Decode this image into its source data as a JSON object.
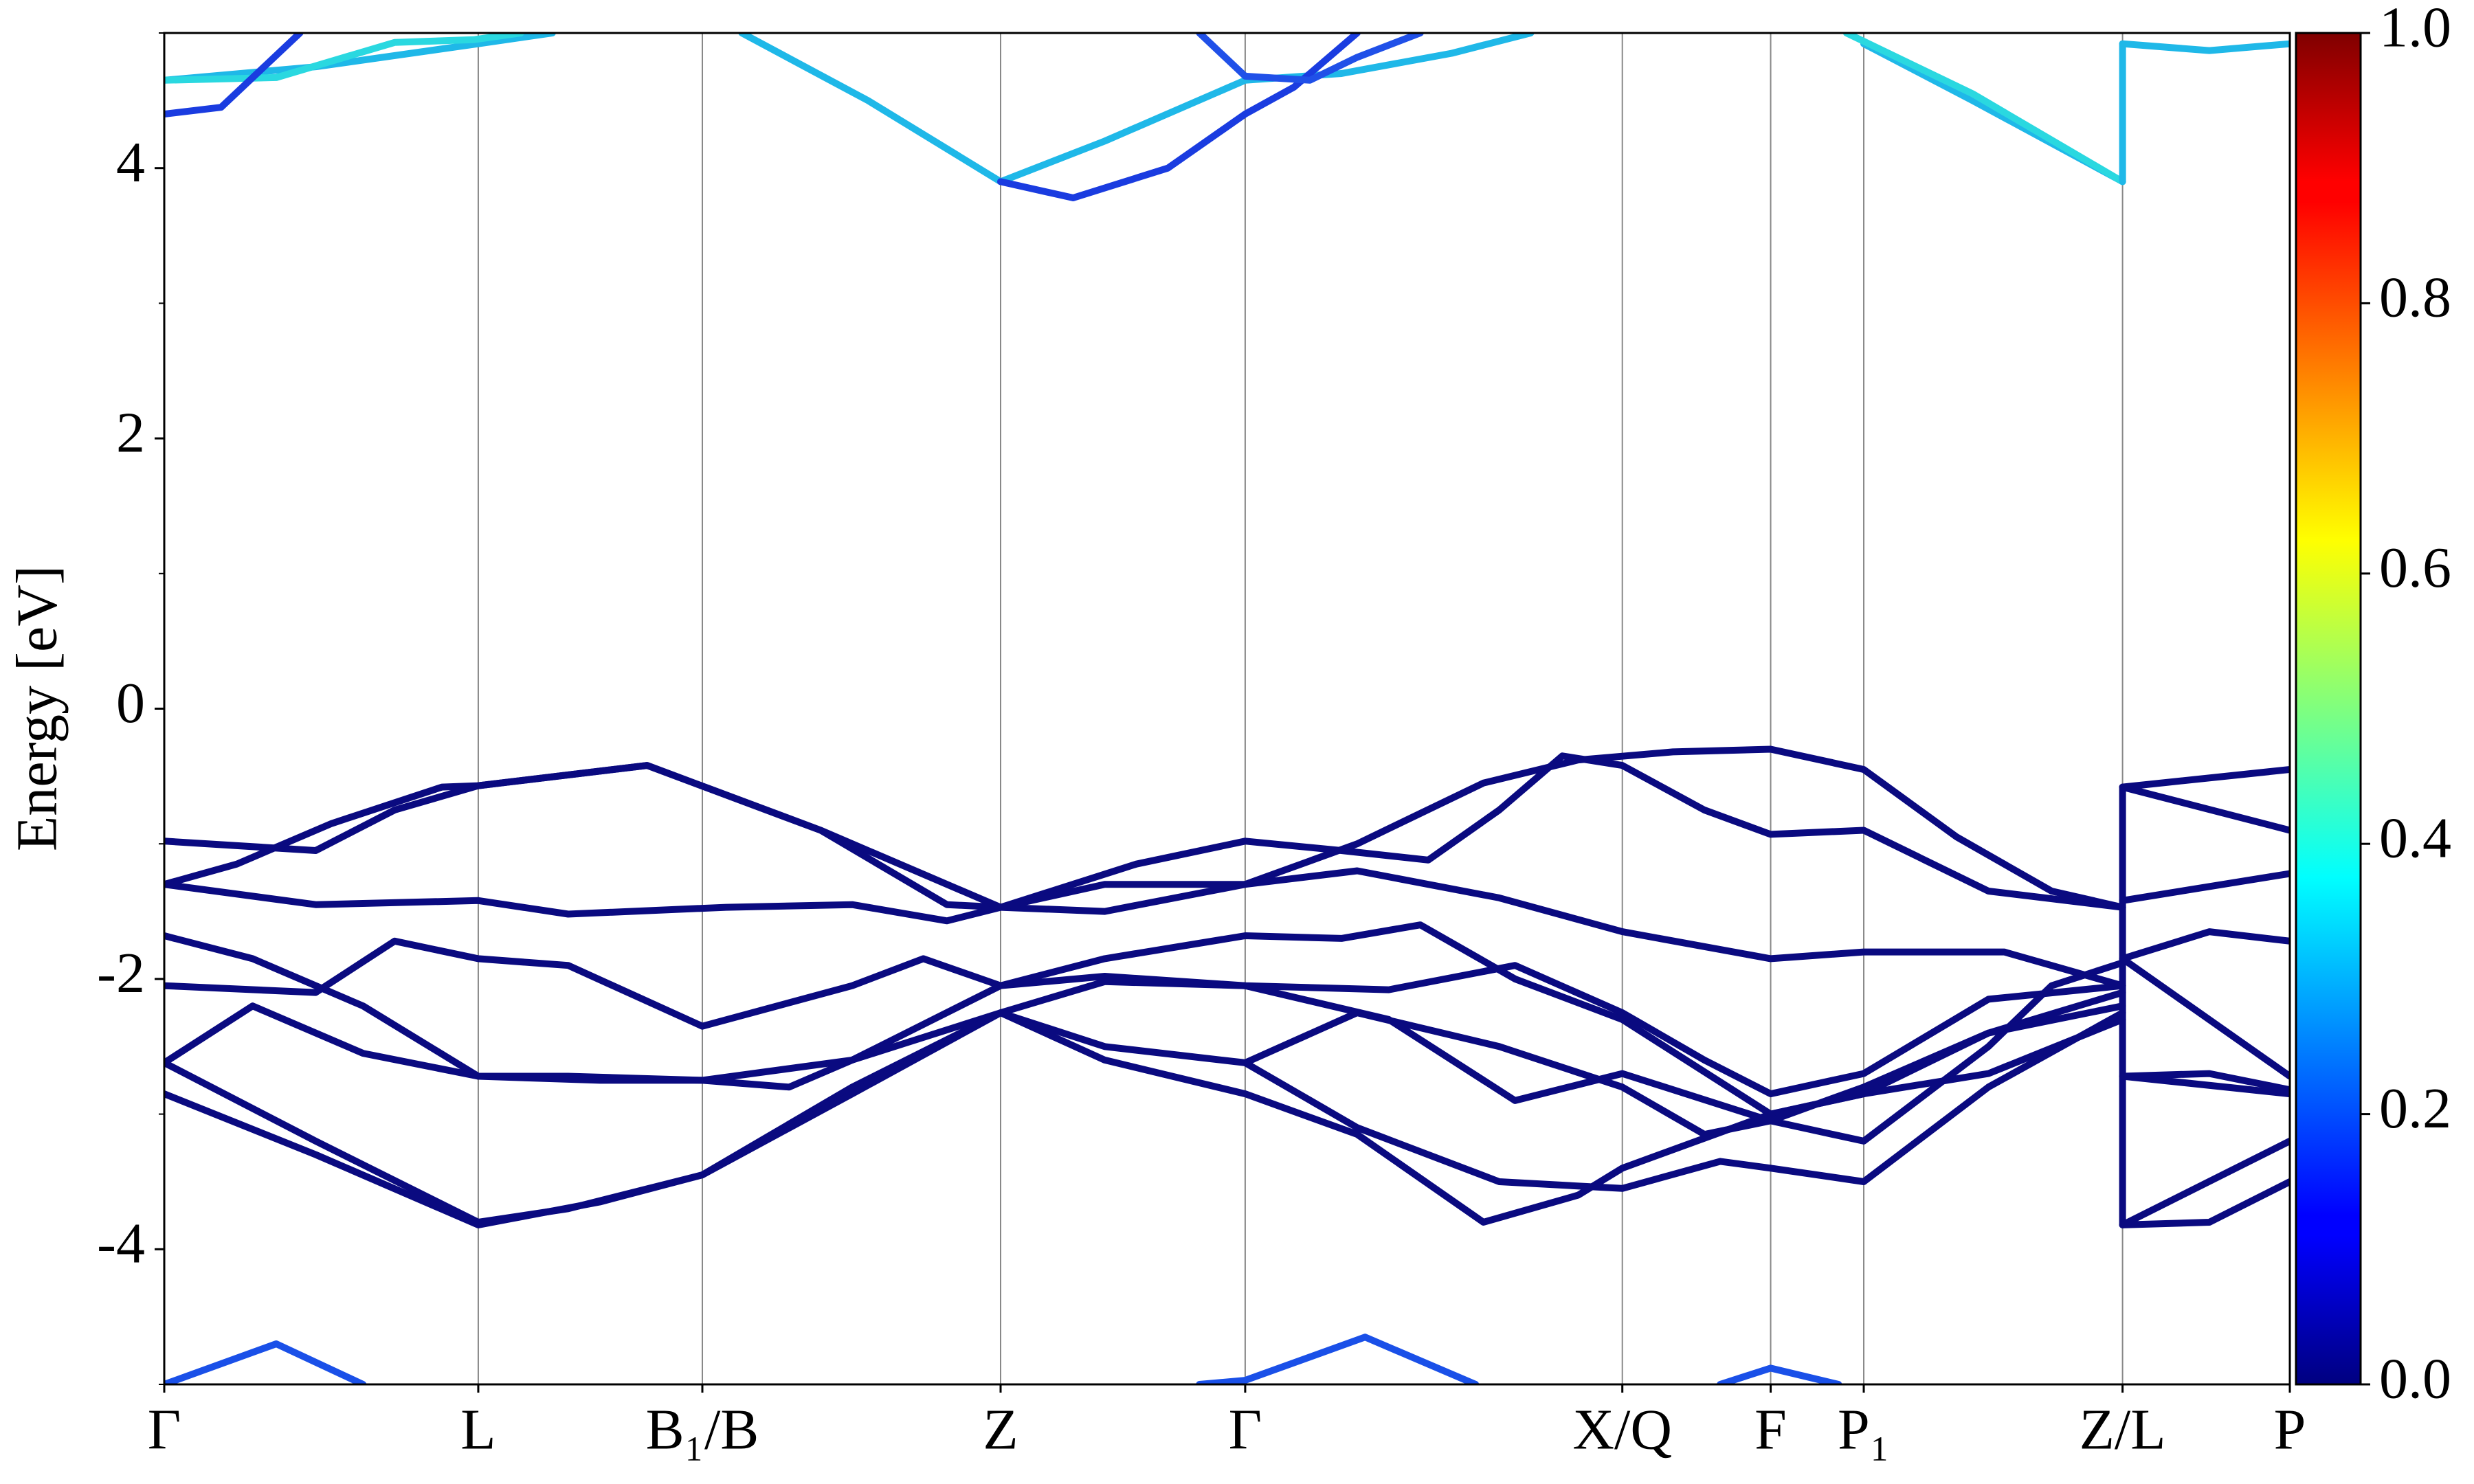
{
  "chart_data": {
    "type": "line",
    "ylabel": "Energy [eV]",
    "xlim": [
      0,
      1347
    ],
    "xticks": [
      {
        "value": 0,
        "label": "Γ"
      },
      {
        "value": 199,
        "label": "L"
      },
      {
        "value": 341,
        "label": "B₁/B"
      },
      {
        "value": 530,
        "label": "Z"
      },
      {
        "value": 685,
        "label": "Γ"
      },
      {
        "value": 924,
        "label": "X/Q"
      },
      {
        "value": 1018,
        "label": "F"
      },
      {
        "value": 1077,
        "label": "P₁"
      },
      {
        "value": 1241,
        "label": "Z/L"
      },
      {
        "value": 1347,
        "label": "P"
      }
    ],
    "ylim": [
      -5,
      5
    ],
    "yticks": [
      -4,
      -2,
      0,
      2,
      4
    ],
    "yminorticks": [
      -5,
      -3,
      -1,
      1,
      3,
      5
    ],
    "grid": "x",
    "colorbar": {
      "colormap": "jet",
      "lim": [
        0,
        1
      ],
      "ticks": [
        {
          "value": 0,
          "label": "0.0"
        },
        {
          "value": 0.2,
          "label": "0.2"
        },
        {
          "value": 0.4,
          "label": "0.4"
        },
        {
          "value": 0.6,
          "label": "0.6"
        },
        {
          "value": 0.8,
          "label": "0.8"
        },
        {
          "value": 1,
          "label": "1.0"
        }
      ]
    },
    "series": [
      {
        "color": "#0a0a80",
        "x": [
          0,
          96,
          146,
          199,
          306,
          416,
          496,
          530,
          616,
          685,
          746,
          801,
          846,
          886,
          924,
          976,
          1018,
          1077,
          1156,
          1241
        ],
        "values": [
          -0.98,
          -1.05,
          -0.75,
          -0.57,
          -0.42,
          -0.9,
          -1.45,
          -1.47,
          -1.15,
          -0.98,
          -1.05,
          -1.12,
          -0.75,
          -0.35,
          -0.42,
          -0.75,
          -0.93,
          -0.9,
          -1.35,
          -1.47
        ]
      },
      {
        "color": "#0a0a80",
        "x": [
          0,
          46,
          106,
          176,
          199,
          306,
          416,
          530,
          596,
          685,
          756,
          836,
          896,
          956,
          1018,
          1077,
          1136,
          1196,
          1241
        ],
        "values": [
          -1.3,
          -1.15,
          -0.85,
          -0.58,
          -0.57,
          -0.42,
          -0.9,
          -1.47,
          -1.5,
          -1.3,
          -1.0,
          -0.55,
          -0.38,
          -0.32,
          -0.3,
          -0.45,
          -0.95,
          -1.35,
          -1.47
        ]
      },
      {
        "color": "#0a0a80",
        "x": [
          0,
          96,
          199,
          256,
          356,
          436,
          496,
          530,
          596,
          685,
          756,
          846,
          924,
          1018,
          1077,
          1166,
          1241
        ],
        "values": [
          -1.3,
          -1.45,
          -1.42,
          -1.52,
          -1.47,
          -1.45,
          -1.57,
          -1.47,
          -1.3,
          -1.3,
          -1.2,
          -1.4,
          -1.65,
          -1.85,
          -1.8,
          -1.8,
          -2.05
        ]
      },
      {
        "color": "#0a0a80",
        "x": [
          0,
          56,
          126,
          199,
          276,
          341,
          396,
          436,
          530,
          596,
          685,
          746,
          796,
          856,
          924,
          1018,
          1077,
          1156,
          1241
        ],
        "values": [
          -1.68,
          -1.85,
          -2.2,
          -2.72,
          -2.75,
          -2.75,
          -2.8,
          -2.6,
          -2.05,
          -1.85,
          -1.68,
          -1.7,
          -1.6,
          -2.0,
          -2.3,
          -3.0,
          -2.85,
          -2.4,
          -2.2
        ]
      },
      {
        "color": "#0a0a80",
        "x": [
          0,
          96,
          146,
          199,
          256,
          341,
          436,
          481,
          530,
          596,
          685,
          776,
          856,
          924,
          976,
          1018,
          1077,
          1156,
          1241
        ],
        "values": [
          -2.05,
          -2.1,
          -1.72,
          -1.85,
          -1.9,
          -2.35,
          -2.05,
          -1.85,
          -2.05,
          -1.98,
          -2.05,
          -2.08,
          -1.9,
          -2.25,
          -2.6,
          -2.85,
          -2.7,
          -2.15,
          -2.05
        ]
      },
      {
        "color": "#0a0a80",
        "x": [
          0,
          56,
          126,
          199,
          256,
          341,
          436,
          530,
          596,
          685,
          776,
          856,
          924,
          1018,
          1077,
          1156,
          1196,
          1241
        ],
        "values": [
          -2.62,
          -2.2,
          -2.55,
          -2.72,
          -2.72,
          -2.75,
          -2.6,
          -2.25,
          -2.02,
          -2.05,
          -2.3,
          -2.9,
          -2.7,
          -3.05,
          -3.2,
          -2.5,
          -2.05,
          -1.88
        ]
      },
      {
        "color": "#0a0a80",
        "x": [
          0,
          96,
          199,
          256,
          341,
          436,
          530,
          596,
          685,
          756,
          836,
          896,
          924,
          1018,
          1077,
          1156,
          1241
        ],
        "values": [
          -2.62,
          -3.2,
          -3.8,
          -3.7,
          -3.45,
          -2.8,
          -2.25,
          -2.6,
          -2.85,
          -3.15,
          -3.8,
          -3.6,
          -3.4,
          -3.0,
          -2.85,
          -2.7,
          -2.3
        ]
      },
      {
        "color": "#0a0a80",
        "x": [
          0,
          96,
          199,
          276,
          341,
          436,
          530,
          596,
          685,
          756,
          846,
          924,
          976,
          1018,
          1077,
          1156,
          1241
        ],
        "values": [
          -2.85,
          -3.3,
          -3.82,
          -3.65,
          -3.45,
          -2.85,
          -2.25,
          -2.5,
          -2.62,
          -2.25,
          -2.5,
          -2.8,
          -3.15,
          -3.05,
          -2.8,
          -2.4,
          -2.1
        ]
      },
      {
        "color": "#0a0a80",
        "x": [
          685,
          756,
          846,
          924,
          986,
          1018,
          1077,
          1156,
          1241
        ],
        "values": [
          -2.62,
          -3.1,
          -3.5,
          -3.55,
          -3.35,
          -3.4,
          -3.5,
          -2.8,
          -2.25
        ]
      },
      {
        "color": "#0a0a80",
        "x": [
          1241,
          1241
        ],
        "values": [
          -0.58,
          -3.82
        ]
      },
      {
        "color": "#0a0a80",
        "x": [
          1241,
          1347
        ],
        "values": [
          -0.58,
          -0.45
        ]
      },
      {
        "color": "#0a0a80",
        "x": [
          1241,
          1347
        ],
        "values": [
          -0.58,
          -0.9
        ]
      },
      {
        "color": "#0a0a80",
        "x": [
          1241,
          1347
        ],
        "values": [
          -1.42,
          -1.22
        ]
      },
      {
        "color": "#0a0a80",
        "x": [
          1241,
          1296,
          1347
        ],
        "values": [
          -1.85,
          -1.65,
          -1.72
        ]
      },
      {
        "color": "#0a0a80",
        "x": [
          1241,
          1347
        ],
        "values": [
          -1.85,
          -2.72
        ]
      },
      {
        "color": "#0a0a80",
        "x": [
          1241,
          1347
        ],
        "values": [
          -2.72,
          -2.85
        ]
      },
      {
        "color": "#0a0a80",
        "x": [
          1241,
          1296,
          1347
        ],
        "values": [
          -2.72,
          -2.7,
          -2.82
        ]
      },
      {
        "color": "#0a0a80",
        "x": [
          1241,
          1347
        ],
        "values": [
          -3.82,
          -3.2
        ]
      },
      {
        "color": "#0a0a80",
        "x": [
          1241,
          1296,
          1347
        ],
        "values": [
          -3.82,
          -3.8,
          -3.5
        ]
      },
      {
        "color": "#1fb8e8",
        "x": [
          0,
          96,
          199,
          246
        ],
        "values": [
          4.65,
          4.75,
          4.92,
          5.0
        ]
      },
      {
        "color": "#2ad8e0",
        "x": [
          0,
          71,
          146,
          196,
          226
        ],
        "values": [
          4.65,
          4.67,
          4.93,
          4.95,
          5.0
        ]
      },
      {
        "color": "#1a3ce0",
        "x": [
          0,
          36,
          86
        ],
        "values": [
          4.4,
          4.45,
          5.0
        ]
      },
      {
        "color": "#1fb8e8",
        "x": [
          366,
          446,
          530,
          596,
          685,
          746,
          816,
          866
        ],
        "values": [
          5.0,
          4.5,
          3.9,
          4.2,
          4.65,
          4.7,
          4.85,
          5.0
        ]
      },
      {
        "color": "#1a3ce0",
        "x": [
          530,
          576,
          636,
          685,
          716,
          756
        ],
        "values": [
          3.9,
          3.78,
          4.0,
          4.4,
          4.6,
          5.0
        ]
      },
      {
        "color": "#2050e8",
        "x": [
          656,
          685,
          726,
          756,
          796
        ],
        "values": [
          5.0,
          4.68,
          4.65,
          4.82,
          5.0
        ]
      },
      {
        "color": "#1fb8e8",
        "x": [
          1077,
          1146,
          1241
        ],
        "values": [
          4.92,
          4.5,
          3.9
        ]
      },
      {
        "color": "#2ad8e0",
        "x": [
          1066,
          1146,
          1241
        ],
        "values": [
          5.0,
          4.55,
          3.9
        ]
      },
      {
        "color": "#1fb8e8",
        "x": [
          1241,
          1241
        ],
        "values": [
          3.9,
          4.92
        ]
      },
      {
        "color": "#1fb8e8",
        "x": [
          1241,
          1296,
          1347
        ],
        "values": [
          4.92,
          4.87,
          4.92
        ]
      },
      {
        "color": "#1a50e8",
        "x": [
          0,
          71,
          126
        ],
        "values": [
          -5.0,
          -4.7,
          -5.0
        ]
      },
      {
        "color": "#1a50e8",
        "x": [
          656,
          685,
          761,
          831
        ],
        "values": [
          -5.0,
          -4.97,
          -4.65,
          -5.0
        ]
      },
      {
        "color": "#1a50e8",
        "x": [
          986,
          1018,
          1061
        ],
        "values": [
          -5.0,
          -4.88,
          -5.0
        ]
      }
    ]
  }
}
